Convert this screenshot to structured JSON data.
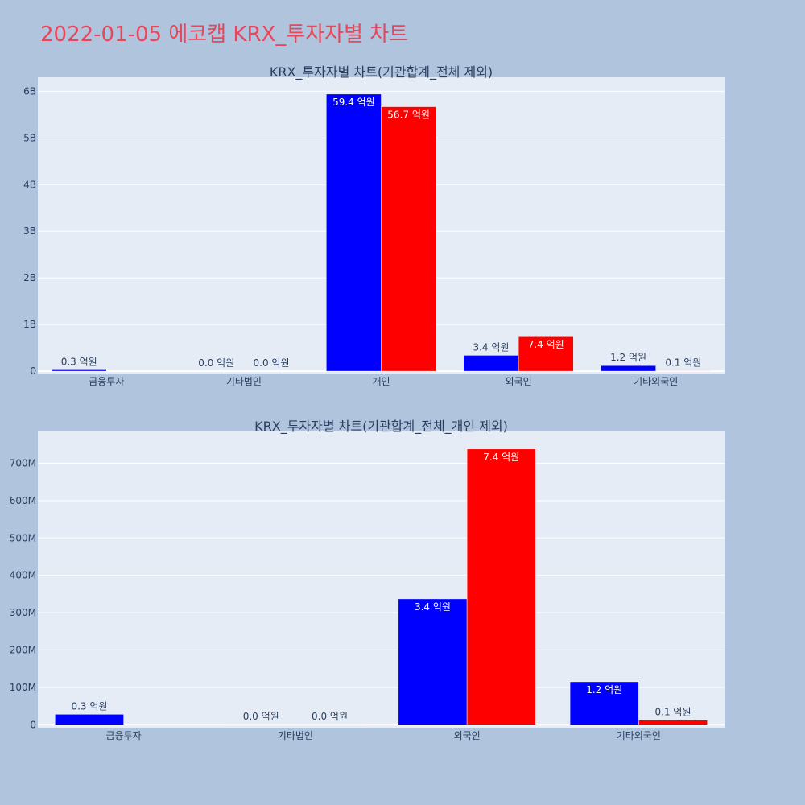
{
  "page": {
    "title": "2022-01-05 에코캡 KRX_투자자별 차트",
    "title_color": "#e8465a",
    "background": "#b0c4de",
    "plot_background": "#e5ecf6"
  },
  "chart_data": [
    {
      "type": "bar",
      "title": "KRX_투자자별 차트(기관합계_전체 제외)",
      "categories": [
        "금융투자",
        "기타법인",
        "개인",
        "외국인",
        "기타외국인"
      ],
      "series": [
        {
          "color": "#0000ff",
          "values": [
            30000000,
            0,
            5940000000,
            340000000,
            120000000
          ],
          "labels": [
            "0.3 억원",
            "0.0 억원",
            "59.4 억원",
            "3.4 억원",
            "1.2 억원"
          ]
        },
        {
          "color": "#ff0000",
          "values": [
            0,
            0,
            5670000000,
            740000000,
            10000000
          ],
          "labels": [
            "",
            "0.0 억원",
            "56.7 억원",
            "7.4 억원",
            "0.1 억원"
          ]
        }
      ],
      "ylim": [
        -50000000,
        6300000000
      ],
      "yticks": [
        0,
        1000000000,
        2000000000,
        3000000000,
        4000000000,
        5000000000,
        6000000000
      ],
      "yticklabels": [
        "0",
        "1B",
        "2B",
        "3B",
        "4B",
        "5B",
        "6B"
      ],
      "grid": true,
      "legend": "none"
    },
    {
      "type": "bar",
      "title": "KRX_투자자별 차트(기관합계_전체_개인 제외)",
      "categories": [
        "금융투자",
        "기타법인",
        "외국인",
        "기타외국인"
      ],
      "series": [
        {
          "color": "#0000ff",
          "values": [
            28000000,
            1000000,
            337000000,
            115000000
          ],
          "labels": [
            "0.3 억원",
            "0.0 억원",
            "3.4 억원",
            "1.2 억원"
          ]
        },
        {
          "color": "#ff0000",
          "values": [
            0,
            1000000,
            738000000,
            12000000
          ],
          "labels": [
            "",
            "0.0 억원",
            "7.4 억원",
            "0.1 억원"
          ]
        }
      ],
      "ylim": [
        -8000000,
        785000000
      ],
      "yticks": [
        0,
        100000000,
        200000000,
        300000000,
        400000000,
        500000000,
        600000000,
        700000000
      ],
      "yticklabels": [
        "0",
        "100M",
        "200M",
        "300M",
        "400M",
        "500M",
        "600M",
        "700M"
      ],
      "grid": true,
      "legend": "none"
    }
  ]
}
